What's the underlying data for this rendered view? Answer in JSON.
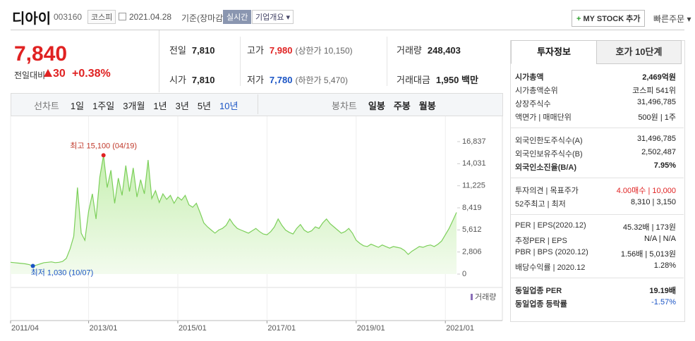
{
  "header": {
    "name": "디아이",
    "code": "003160",
    "market": "코스피",
    "date": "2021.04.28",
    "basis": "기준(장마감)",
    "realtime": "실시간",
    "overview": "기업개요",
    "mystock": "MY STOCK 추가",
    "quick_order": "빠른주문"
  },
  "quote": {
    "price": "7,840",
    "change_label": "전일대비",
    "change": "30",
    "change_pct": "+0.38%",
    "rows": [
      [
        [
          "전일",
          "7,810"
        ],
        [
          "고가",
          "7,980",
          "(상한가 10,150)"
        ],
        [
          "거래량",
          "248,403"
        ]
      ],
      [
        [
          "시가",
          "7,810"
        ],
        [
          "저가",
          "7,780",
          "(하한가 5,470)"
        ],
        [
          "거래대금",
          "1,950 백만"
        ]
      ]
    ]
  },
  "tabs": {
    "line_label": "선차트",
    "line": [
      "1일",
      "1주일",
      "3개월",
      "1년",
      "3년",
      "5년",
      "10년"
    ],
    "candle_label": "봉차트",
    "candle": [
      "일봉",
      "주봉",
      "월봉"
    ]
  },
  "chart_data": {
    "type": "area",
    "color": "#7ccf5a",
    "categories": [
      "2011/04",
      null,
      null,
      null,
      null,
      null,
      null,
      null,
      null,
      null,
      null,
      null,
      null,
      null,
      null,
      null,
      null,
      null,
      null,
      null,
      null,
      "2013/01",
      null,
      null,
      null,
      null,
      null,
      null,
      null,
      null,
      null,
      null,
      null,
      null,
      null,
      null,
      null,
      null,
      null,
      null,
      null,
      null,
      null,
      null,
      null,
      "2015/01",
      null,
      null,
      null,
      null,
      null,
      null,
      null,
      null,
      null,
      null,
      null,
      null,
      null,
      null,
      null,
      null,
      null,
      null,
      null,
      null,
      null,
      null,
      null,
      "2017/01",
      null,
      null,
      null,
      null,
      null,
      null,
      null,
      null,
      null,
      null,
      null,
      null,
      null,
      null,
      null,
      null,
      null,
      null,
      null,
      null,
      null,
      null,
      null,
      "2019/01",
      null,
      null,
      null,
      null,
      null,
      null,
      null,
      null,
      null,
      null,
      null,
      null,
      null,
      null,
      null,
      null,
      null,
      null,
      null,
      null,
      null,
      null,
      null,
      "2021/01",
      null,
      null,
      null
    ],
    "values": [
      1500,
      1450,
      1400,
      1350,
      1300,
      1200,
      1030,
      1150,
      1300,
      1450,
      1500,
      1550,
      1450,
      1500,
      1600,
      2000,
      3200,
      4800,
      11000,
      5200,
      4300,
      8000,
      10200,
      7000,
      12300,
      15100,
      11000,
      13200,
      9000,
      12200,
      10000,
      13800,
      10500,
      13500,
      9800,
      12000,
      10200,
      14500,
      9600,
      10600,
      9100,
      10200,
      9500,
      10000,
      9000,
      9800,
      9400,
      10000,
      8800,
      8500,
      9000,
      7800,
      6500,
      6000,
      5600,
      5200,
      5600,
      5800,
      6200,
      7000,
      6300,
      5800,
      5600,
      5400,
      5200,
      5500,
      5800,
      5400,
      5100,
      5000,
      5400,
      6000,
      7000,
      6200,
      5600,
      5300,
      5100,
      5800,
      6300,
      5600,
      5300,
      5500,
      6000,
      5800,
      6500,
      7000,
      6400,
      6000,
      5600,
      5200,
      5400,
      5800,
      5200,
      4300,
      3900,
      3600,
      3500,
      3800,
      3600,
      3400,
      3700,
      3500,
      3300,
      3500,
      3400,
      3300,
      3000,
      2500,
      2900,
      3200,
      3500,
      3400,
      3600,
      3700,
      3500,
      3800,
      4200,
      5000,
      5800,
      6800,
      7840
    ],
    "ylim": [
      0,
      16837
    ],
    "yticks": [
      {
        "value": 16837,
        "label": "16,837"
      },
      {
        "value": 14031,
        "label": "14,031"
      },
      {
        "value": 11225,
        "label": "11,225"
      },
      {
        "value": 8419,
        "label": "8,419"
      },
      {
        "value": 5612,
        "label": "5,612"
      },
      {
        "value": 2806,
        "label": "2,806"
      },
      0
    ],
    "annotations": [
      "최고 15,100 (04/19)",
      "최저 1,030 (10/07)"
    ],
    "volume_label": "거래량"
  },
  "sidebar": {
    "tabs": [
      "투자정보",
      "호가 10단계"
    ],
    "groups": [
      [
        [
          "시가총액",
          "2,469억원"
        ],
        [
          "시가총액순위",
          "코스피 541위"
        ],
        [
          "상장주식수",
          "31,496,785"
        ],
        [
          "액면가 | 매매단위",
          "500원 | 1주"
        ]
      ],
      [
        [
          "외국인한도주식수(A)",
          "31,496,785"
        ],
        [
          "외국인보유주식수(B)",
          "2,502,487"
        ],
        [
          "외국인소진율(B/A)",
          "7.95%"
        ]
      ],
      [
        [
          "투자의견 | 목표주가",
          "4.00매수 | 10,000"
        ],
        [
          "52주최고 | 최저",
          "8,310 | 3,150"
        ]
      ],
      [
        [
          "PER | EPS(2020.12)",
          "45.32배 | 173원"
        ],
        [
          "추정PER | EPS",
          "N/A | N/A"
        ],
        [
          "PBR | BPS (2020.12)",
          "1.56배 | 5,013원"
        ],
        [
          "배당수익률 | 2020.12",
          "1.28%"
        ]
      ],
      [
        [
          "동일업종 PER",
          "19.19배"
        ],
        [
          "동일업종 등락률",
          "-1.57%"
        ]
      ]
    ]
  }
}
